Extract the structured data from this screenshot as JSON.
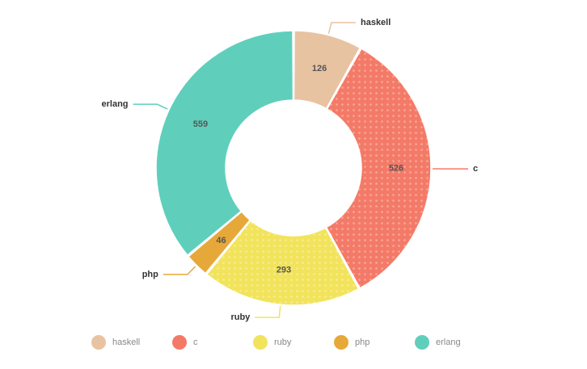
{
  "chart_data": {
    "type": "donut",
    "categories": [
      "haskell",
      "c",
      "ruby",
      "php",
      "erlang"
    ],
    "values": [
      126,
      526,
      293,
      46,
      559
    ],
    "colors": [
      "#e8c3a2",
      "#f47a68",
      "#f2e35c",
      "#e7a83a",
      "#5fcfbc"
    ]
  }
}
